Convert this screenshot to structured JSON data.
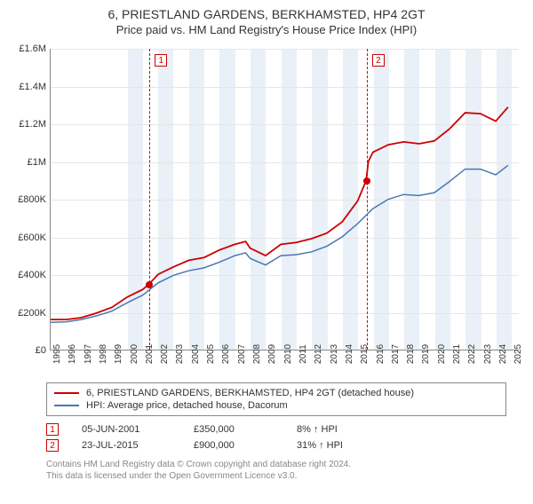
{
  "title": "6, PRIESTLAND GARDENS, BERKHAMSTED, HP4 2GT",
  "subtitle": "Price paid vs. HM Land Registry's House Price Index (HPI)",
  "chart": {
    "type": "line",
    "background_color": "#ffffff",
    "band_color": "#e9f0f7",
    "grid_color": "#e6e6e6",
    "axis_color": "#888888",
    "label_fontsize": 11,
    "xlim": [
      1995,
      2025.5
    ],
    "ylim": [
      0,
      1600000
    ],
    "ytick_step": 200000,
    "yticks": [
      "£0",
      "£200K",
      "£400K",
      "£600K",
      "£800K",
      "£1M",
      "£1.2M",
      "£1.4M",
      "£1.6M"
    ],
    "xticks": [
      1995,
      1996,
      1997,
      1998,
      1999,
      2000,
      2001,
      2002,
      2003,
      2004,
      2005,
      2006,
      2007,
      2008,
      2009,
      2010,
      2011,
      2012,
      2013,
      2014,
      2015,
      2016,
      2017,
      2018,
      2019,
      2020,
      2021,
      2022,
      2023,
      2024,
      2025
    ],
    "bands_shaded_start": 2000,
    "series": [
      {
        "id": "property",
        "label": "6, PRIESTLAND GARDENS, BERKHAMSTED, HP4 2GT (detached house)",
        "color": "#cc0000",
        "line_width": 1.8,
        "points": [
          [
            1995,
            160000
          ],
          [
            1996,
            160000
          ],
          [
            1997,
            170000
          ],
          [
            1998,
            195000
          ],
          [
            1999,
            225000
          ],
          [
            2000,
            280000
          ],
          [
            2001,
            320000
          ],
          [
            2001.43,
            350000
          ],
          [
            2002,
            400000
          ],
          [
            2003,
            440000
          ],
          [
            2004,
            475000
          ],
          [
            2005,
            490000
          ],
          [
            2006,
            530000
          ],
          [
            2007,
            560000
          ],
          [
            2007.7,
            575000
          ],
          [
            2008,
            540000
          ],
          [
            2009,
            500000
          ],
          [
            2010,
            560000
          ],
          [
            2011,
            570000
          ],
          [
            2012,
            590000
          ],
          [
            2013,
            620000
          ],
          [
            2014,
            680000
          ],
          [
            2015,
            790000
          ],
          [
            2015.56,
            900000
          ],
          [
            2015.7,
            1000000
          ],
          [
            2016,
            1050000
          ],
          [
            2017,
            1090000
          ],
          [
            2018,
            1105000
          ],
          [
            2019,
            1095000
          ],
          [
            2020,
            1110000
          ],
          [
            2021,
            1175000
          ],
          [
            2022,
            1260000
          ],
          [
            2023,
            1255000
          ],
          [
            2024,
            1215000
          ],
          [
            2024.8,
            1290000
          ]
        ]
      },
      {
        "id": "hpi",
        "label": "HPI: Average price, detached house, Dacorum",
        "color": "#4a77b4",
        "line_width": 1.5,
        "points": [
          [
            1995,
            145000
          ],
          [
            1996,
            148000
          ],
          [
            1997,
            160000
          ],
          [
            1998,
            180000
          ],
          [
            1999,
            205000
          ],
          [
            2000,
            250000
          ],
          [
            2001,
            290000
          ],
          [
            2002,
            355000
          ],
          [
            2003,
            395000
          ],
          [
            2004,
            420000
          ],
          [
            2005,
            435000
          ],
          [
            2006,
            465000
          ],
          [
            2007,
            500000
          ],
          [
            2007.7,
            515000
          ],
          [
            2008,
            485000
          ],
          [
            2009,
            450000
          ],
          [
            2010,
            500000
          ],
          [
            2011,
            505000
          ],
          [
            2012,
            520000
          ],
          [
            2013,
            550000
          ],
          [
            2014,
            600000
          ],
          [
            2015,
            670000
          ],
          [
            2016,
            750000
          ],
          [
            2017,
            800000
          ],
          [
            2018,
            825000
          ],
          [
            2019,
            820000
          ],
          [
            2020,
            835000
          ],
          [
            2021,
            895000
          ],
          [
            2022,
            960000
          ],
          [
            2023,
            960000
          ],
          [
            2024,
            930000
          ],
          [
            2024.8,
            980000
          ]
        ]
      }
    ],
    "sales": [
      {
        "n": "1",
        "date": "05-JUN-2001",
        "year": 2001.43,
        "price_label": "£350,000",
        "price": 350000,
        "pct": "8% ↑ HPI"
      },
      {
        "n": "2",
        "date": "23-JUL-2015",
        "year": 2015.56,
        "price_label": "£900,000",
        "price": 900000,
        "pct": "31% ↑ HPI"
      }
    ]
  },
  "footer": {
    "line1": "Contains HM Land Registry data © Crown copyright and database right 2024.",
    "line2": "This data is licensed under the Open Government Licence v3.0."
  }
}
